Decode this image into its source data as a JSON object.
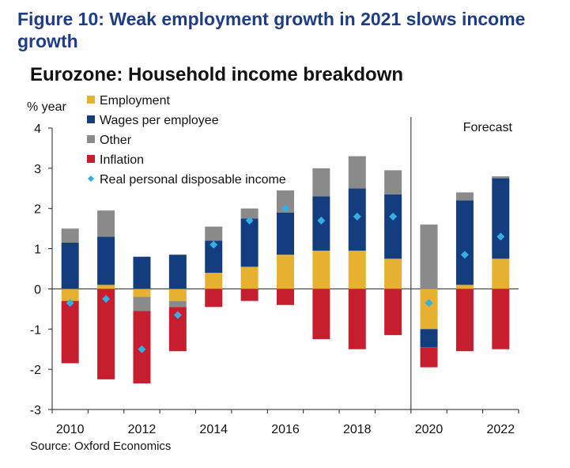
{
  "figure_title": "Figure 10: Weak employment growth in 2021 slows income growth",
  "source": "Source: Oxford Economics",
  "chart_data": {
    "type": "bar",
    "stacked": true,
    "title": "Eurozone: Household income breakdown",
    "ylabel": "% year",
    "xlabel": "",
    "ylim": [
      -3,
      4
    ],
    "yticks": [
      4,
      3,
      2,
      1,
      0,
      -1,
      -2,
      -3
    ],
    "categories": [
      "2010",
      "2011",
      "2012",
      "2013",
      "2014",
      "2015",
      "2016",
      "2017",
      "2018",
      "2019",
      "2020",
      "2021",
      "2022"
    ],
    "xtick_labels": [
      "2010",
      "2012",
      "2014",
      "2016",
      "2018",
      "2020",
      "2022"
    ],
    "forecast_label": "Forecast",
    "forecast_from": "2020",
    "legend_position": "top-left",
    "colors": {
      "Employment": "#e6b030",
      "Wages per employee": "#133d7e",
      "Other": "#8a8a8a",
      "Inflation": "#c61e2e",
      "Real personal disposable income": "#35aee4"
    },
    "series": [
      {
        "name": "Employment",
        "values": [
          -0.3,
          0.1,
          -0.2,
          -0.3,
          0.4,
          0.55,
          0.85,
          0.95,
          0.95,
          0.75,
          -1.0,
          0.1,
          0.75
        ]
      },
      {
        "name": "Wages per employee",
        "values": [
          1.15,
          1.2,
          0.8,
          0.85,
          0.8,
          1.2,
          1.05,
          1.35,
          1.55,
          1.6,
          -0.45,
          2.1,
          2.0
        ]
      },
      {
        "name": "Other",
        "values": [
          0.35,
          0.65,
          -0.35,
          -0.15,
          0.35,
          0.25,
          0.55,
          0.7,
          0.8,
          0.6,
          1.6,
          0.2,
          0.05
        ]
      },
      {
        "name": "Inflation",
        "values": [
          -1.55,
          -2.25,
          -1.8,
          -1.1,
          -0.45,
          -0.3,
          -0.4,
          -1.25,
          -1.5,
          -1.15,
          -0.5,
          -1.55,
          -1.5
        ]
      },
      {
        "name": "Real personal disposable income",
        "type": "scatter",
        "values": [
          -0.35,
          -0.25,
          -1.5,
          -0.65,
          1.1,
          1.7,
          2.0,
          1.7,
          1.8,
          1.8,
          -0.35,
          0.85,
          1.3
        ]
      }
    ]
  }
}
